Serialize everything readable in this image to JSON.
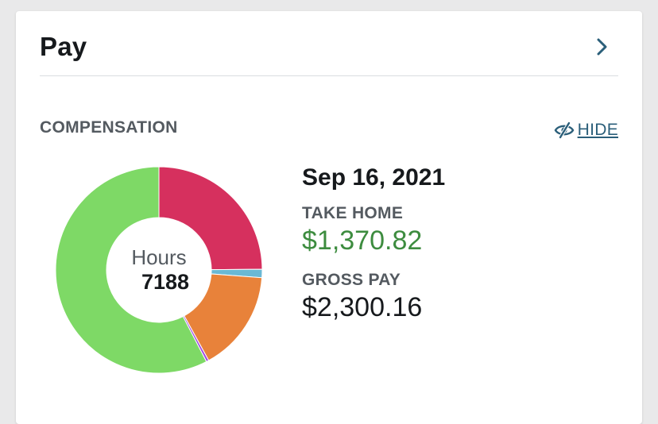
{
  "card": {
    "title": "Pay",
    "open_icon": "chevron-right-icon"
  },
  "compensation": {
    "section_label": "COMPENSATION",
    "hide_toggle": {
      "label": "HIDE",
      "icon": "eye-slash-icon"
    }
  },
  "donut": {
    "center_label": "Hours",
    "center_value": "7188",
    "segments": [
      {
        "color": "#d6305e",
        "fraction": 0.249
      },
      {
        "color": "#6ab8d4",
        "fraction": 0.013
      },
      {
        "color": "#e8823a",
        "fraction": 0.158
      },
      {
        "color": "#a24be3",
        "fraction": 0.004
      },
      {
        "color": "#7ed966",
        "fraction": 0.576
      }
    ]
  },
  "summary": {
    "date": "Sep 16, 2021",
    "take_home_label": "TAKE HOME",
    "take_home_value": "$1,370.82",
    "gross_label": "GROSS PAY",
    "gross_value": "$2,300.16"
  },
  "colors": {
    "take_home": "#3d8c3f",
    "link": "#2b5f7a"
  }
}
